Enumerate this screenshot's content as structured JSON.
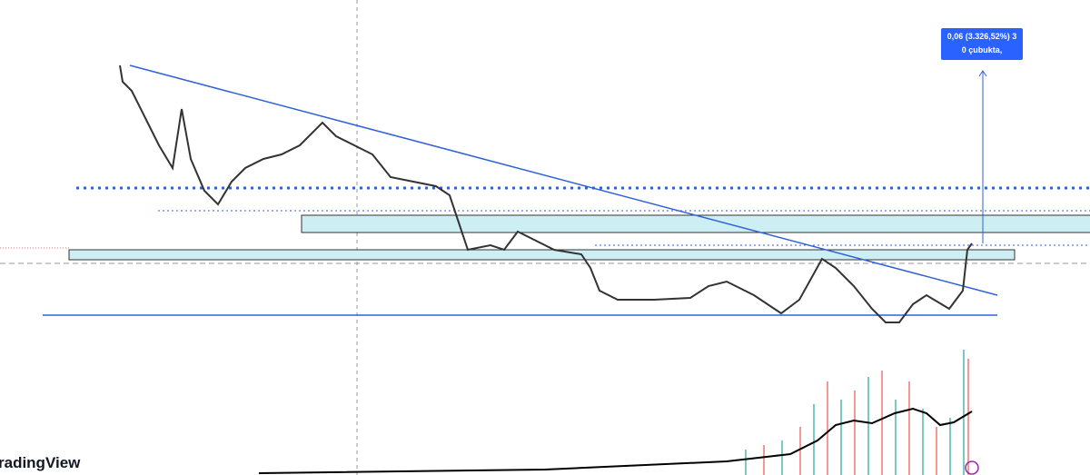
{
  "header": {
    "label_line1": "0,06 (3.326,52%) 3",
    "label_line2": "0 çubukta,",
    "watermark": "radingView"
  }
}
